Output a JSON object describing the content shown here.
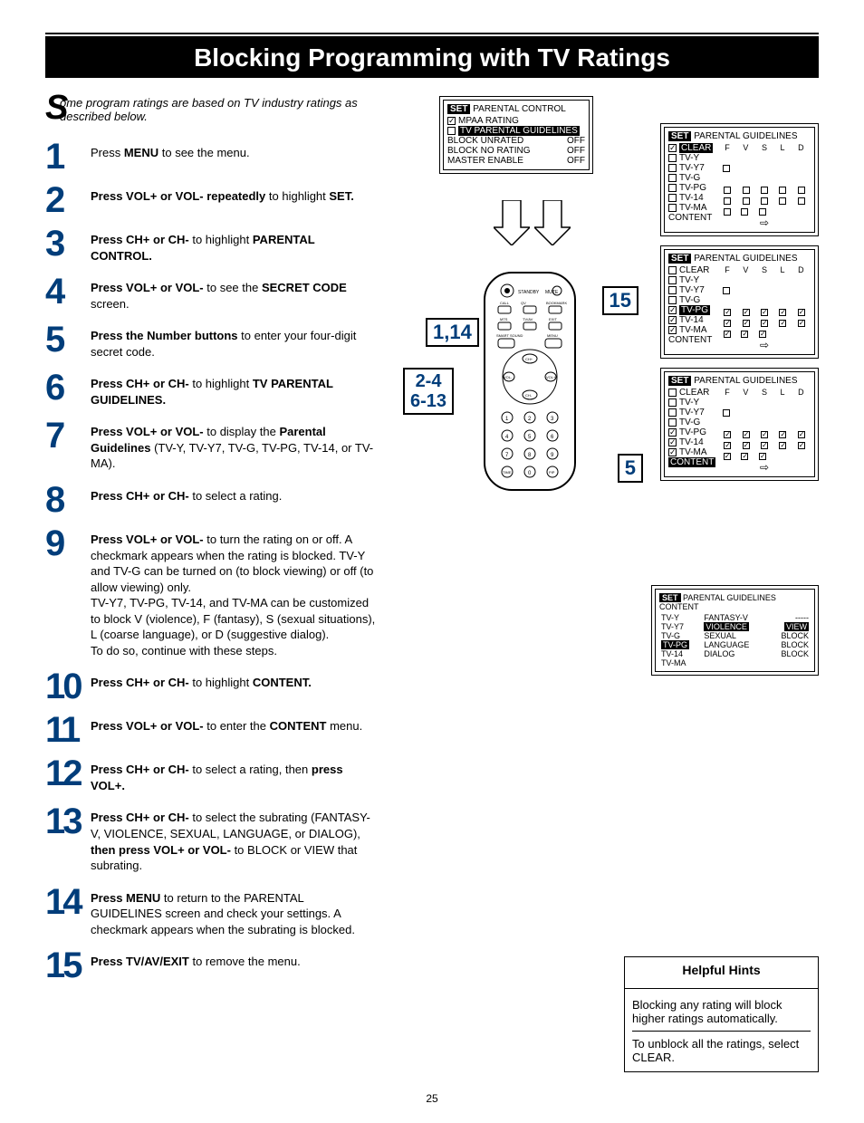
{
  "page_number": "25",
  "title": "Blocking Programming with TV Ratings",
  "intro": {
    "dropcap": "S",
    "text": "ome program ratings are based on TV industry ratings as described below."
  },
  "steps": [
    {
      "n": "1",
      "html": "Press <b>MENU</b> to see the menu."
    },
    {
      "n": "2",
      "html": "<b>Press VOL+ or VOL- repeatedly</b> to highlight <b>SET.</b>"
    },
    {
      "n": "3",
      "html": "<b>Press CH+ or CH-</b> to highlight <b>PARENTAL CONTROL.</b>"
    },
    {
      "n": "4",
      "html": "<b>Press VOL+ or VOL-</b> to see the <b>SECRET CODE</b> screen."
    },
    {
      "n": "5",
      "html": "<b>Press the Number buttons</b> to enter your four-digit secret code."
    },
    {
      "n": "6",
      "html": "<b>Press CH+ or CH-</b> to highlight <b>TV PARENTAL GUIDELINES.</b>"
    },
    {
      "n": "7",
      "html": "<b>Press VOL+ or VOL-</b> to display the <b>Parental Guidelines</b> (TV-Y, TV-Y7, TV-G, TV-PG, TV-14, or TV-MA)."
    },
    {
      "n": "8",
      "html": "<b>Press CH+ or CH-</b> to select a rating."
    },
    {
      "n": "9",
      "html": "<b>Press VOL+ or VOL-</b> to turn the rating on or off.  A checkmark appears when the rating is blocked. TV-Y and TV-G can be turned on (to block viewing) or off (to allow viewing) only.<br>TV-Y7, TV-PG, TV-14, and TV-MA can be customized to block V (violence), F (fantasy), S (sexual situations), L (coarse language), or D (suggestive dialog).<br>To do so, continue with these steps."
    },
    {
      "n": "10",
      "html": "<b>Press CH+ or CH-</b> to highlight <b>CONTENT.</b>"
    },
    {
      "n": "11",
      "html": "<b>Press VOL+ or VOL-</b> to enter the <b>CONTENT</b> menu."
    },
    {
      "n": "12",
      "html": "<b>Press CH+ or CH-</b> to select a rating, then <b>press VOL+.</b>"
    },
    {
      "n": "13",
      "html": "<b>Press CH+ or CH-</b> to select the subrating (FANTASY-V,  VIOLENCE, SEXUAL, LANGUAGE, or DIALOG), <b>then press VOL+ or VOL-</b> to BLOCK or VIEW that subrating."
    },
    {
      "n": "14",
      "html": "<b>Press MENU</b> to return to the PARENTAL GUIDELINES screen and check your settings.  A checkmark appears when the subrating is blocked."
    },
    {
      "n": "15",
      "html": "<b>Press TV/AV/EXIT</b> to remove the menu."
    }
  ],
  "osd_parental": {
    "header": "PARENTAL CONTROL",
    "rows": [
      {
        "cb": "ck",
        "label": "MPAA RATING",
        "val": ""
      },
      {
        "cb": "",
        "label_hl": "TV PARENTAL GUIDELINES",
        "val": ""
      },
      {
        "label": "BLOCK UNRATED",
        "val": "OFF"
      },
      {
        "label": "BLOCK NO RATING",
        "val": "OFF"
      },
      {
        "label": "MASTER ENABLE",
        "val": "OFF"
      }
    ]
  },
  "guidelines_header_letters": [
    "F",
    "V",
    "S",
    "L",
    "D"
  ],
  "osd_g1": {
    "header": "PARENTAL GUIDELINES",
    "clear_hl": true,
    "ratings": [
      {
        "name": "TV-Y",
        "cells": [
          "",
          "",
          "",
          "",
          ""
        ]
      },
      {
        "name": "TV-Y7",
        "cells": [
          "sq",
          "",
          "",
          "",
          ""
        ]
      },
      {
        "name": "TV-G",
        "cells": [
          "",
          "",
          "",
          "",
          ""
        ]
      },
      {
        "name": "TV-PG",
        "cells": [
          "sq",
          "sq",
          "sq",
          "sq",
          "sq"
        ]
      },
      {
        "name": "TV-14",
        "cells": [
          "sq",
          "sq",
          "sq",
          "sq",
          "sq"
        ]
      },
      {
        "name": "TV-MA",
        "cells": [
          "sq",
          "sq",
          "sq",
          "",
          ""
        ]
      }
    ],
    "content_row": "CONTENT"
  },
  "osd_g2": {
    "header": "PARENTAL GUIDELINES",
    "clear_hl": false,
    "highlight_rating": "TV-PG",
    "ratings": [
      {
        "name": "TV-Y",
        "cb": "",
        "cells": [
          "",
          "",
          "",
          "",
          ""
        ]
      },
      {
        "name": "TV-Y7",
        "cb": "",
        "cells": [
          "sq",
          "",
          "",
          "",
          ""
        ]
      },
      {
        "name": "TV-G",
        "cb": "",
        "cells": [
          "",
          "",
          "",
          "",
          ""
        ]
      },
      {
        "name": "TV-PG",
        "cb": "ck",
        "hl": true,
        "cells": [
          "ck",
          "ck",
          "ck",
          "ck",
          "ck"
        ]
      },
      {
        "name": "TV-14",
        "cb": "ck",
        "cells": [
          "ck",
          "ck",
          "ck",
          "ck",
          "ck"
        ]
      },
      {
        "name": "TV-MA",
        "cb": "ck",
        "cells": [
          "ck",
          "ck",
          "ck",
          "",
          ""
        ]
      }
    ],
    "content_row": "CONTENT"
  },
  "osd_g3": {
    "header": "PARENTAL GUIDELINES",
    "clear_hl": false,
    "highlight_content": true,
    "ratings": [
      {
        "name": "TV-Y",
        "cb": "",
        "cells": [
          "",
          "",
          "",
          "",
          ""
        ]
      },
      {
        "name": "TV-Y7",
        "cb": "",
        "cells": [
          "sq",
          "",
          "",
          "",
          ""
        ]
      },
      {
        "name": "TV-G",
        "cb": "",
        "cells": [
          "",
          "",
          "",
          "",
          ""
        ]
      },
      {
        "name": "TV-PG",
        "cb": "ck",
        "cells": [
          "ck",
          "ck",
          "ck",
          "ck",
          "ck"
        ]
      },
      {
        "name": "TV-14",
        "cb": "ck",
        "cells": [
          "ck",
          "ck",
          "ck",
          "ck",
          "ck"
        ]
      },
      {
        "name": "TV-MA",
        "cb": "ck",
        "cells": [
          "ck",
          "ck",
          "ck",
          "",
          ""
        ]
      }
    ],
    "content_row": "CONTENT"
  },
  "content_table": {
    "header": "PARENTAL GUIDELINES CONTENT",
    "left_col": [
      "TV-Y",
      "TV-Y7",
      "TV-G",
      "TV-PG",
      "TV-14",
      "TV-MA"
    ],
    "left_highlight": "TV-PG",
    "rows": [
      {
        "label": "FANTASY-V",
        "val": "-----"
      },
      {
        "label_hl": "VIOLENCE",
        "val_hl": "VIEW"
      },
      {
        "label": "SEXUAL",
        "val": "BLOCK"
      },
      {
        "label": "LANGUAGE",
        "val": "BLOCK"
      },
      {
        "label": "DIALOG",
        "val": "BLOCK"
      }
    ]
  },
  "callouts": {
    "c1": "1,14",
    "c2": "15",
    "c3_line1": "2-4",
    "c3_line2": "6-13",
    "c4": "5"
  },
  "hints": {
    "title": "Helpful Hints",
    "p1": "Blocking any rating will block higher ratings automatically.",
    "p2": "To unblock all the ratings, select CLEAR."
  },
  "colors": {
    "step_num": "#003d7a",
    "bg": "#ffffff",
    "fg": "#000000"
  }
}
